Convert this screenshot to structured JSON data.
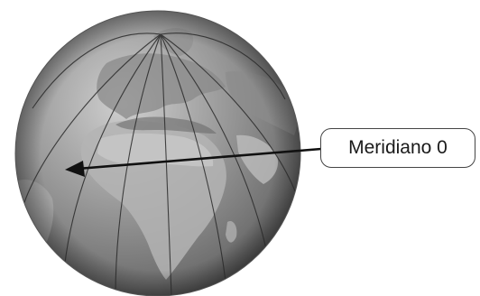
{
  "callout": {
    "label": "Meridiano 0"
  },
  "colors": {
    "meridian_line": "#2a2a2a",
    "arrow": "#111111",
    "callout_border": "#444444"
  }
}
